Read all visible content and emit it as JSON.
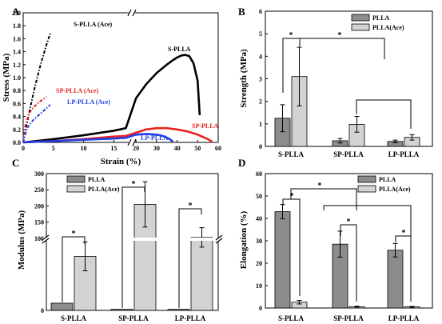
{
  "panel_letters": {
    "a": "A",
    "b": "B",
    "c": "C",
    "d": "D"
  },
  "legend": {
    "plla": "PLLA",
    "plla_ace": "PLLA(Ace)"
  },
  "chart_data": [
    {
      "panel": "A",
      "type": "line",
      "xlabel": "Strain (%)",
      "ylabel": "Stress (MPa)",
      "x_ticks_left": [
        "0",
        "5",
        "10",
        "15"
      ],
      "x_ticks_right": [
        "20",
        "30",
        "40",
        "50",
        "60"
      ],
      "y_ticks": [
        "0.0",
        "0.2",
        "0.4",
        "0.6",
        "0.8",
        "1.0",
        "1.2",
        "1.4",
        "1.6",
        "1.8",
        "2.0"
      ],
      "ylim": [
        0,
        2.0
      ],
      "axis_break": "x",
      "series_labels": [
        {
          "text": "S-PLLA (Ace)",
          "color": "#000000"
        },
        {
          "text": "SP-PLLA (Ace)",
          "color": "#e8231f"
        },
        {
          "text": "LP-PLLA (Ace)",
          "color": "#1f3ee8"
        },
        {
          "text": "S-PLLA",
          "color": "#000000"
        },
        {
          "text": "SP-PLLA",
          "color": "#e8231f"
        },
        {
          "text": "LP-PLLA",
          "color": "#1f3ee8"
        }
      ],
      "series": [
        {
          "name": "S-PLLA (Ace)",
          "color": "#000000",
          "style": "dashdot",
          "x": [
            0,
            0.3,
            0.6,
            0.9,
            1.2,
            1.4
          ],
          "y": [
            0,
            0.45,
            0.85,
            1.2,
            1.5,
            1.68
          ]
        },
        {
          "name": "SP-PLLA (Ace)",
          "color": "#e8231f",
          "style": "dashdot",
          "x": [
            0,
            0.1,
            0.3,
            0.6,
            0.9,
            1.2
          ],
          "y": [
            0,
            0.25,
            0.45,
            0.56,
            0.64,
            0.7
          ]
        },
        {
          "name": "LP-PLLA (Ace)",
          "color": "#1f3ee8",
          "style": "dashdot",
          "x": [
            0,
            0.2,
            0.5,
            0.8,
            1.1,
            1.4
          ],
          "y": [
            0,
            0.22,
            0.34,
            0.42,
            0.5,
            0.58
          ]
        },
        {
          "name": "S-PLLA",
          "color": "#000000",
          "style": "solid",
          "x": [
            0,
            5,
            10,
            15,
            17,
            20,
            25,
            30,
            35,
            38,
            40,
            42,
            44,
            46,
            48,
            50,
            51
          ],
          "y": [
            0,
            0.05,
            0.11,
            0.18,
            0.22,
            0.68,
            0.9,
            1.07,
            1.2,
            1.27,
            1.31,
            1.34,
            1.35,
            1.33,
            1.22,
            0.95,
            0.42
          ]
        },
        {
          "name": "SP-PLLA",
          "color": "#e8231f",
          "style": "solid",
          "x": [
            0,
            5,
            10,
            15,
            17,
            20,
            25,
            30,
            35,
            40,
            45,
            50,
            55,
            57
          ],
          "y": [
            0,
            0.02,
            0.05,
            0.09,
            0.1,
            0.15,
            0.2,
            0.22,
            0.22,
            0.2,
            0.17,
            0.12,
            0.05,
            0.01
          ]
        },
        {
          "name": "LP-PLLA",
          "color": "#1f3ee8",
          "style": "solid",
          "x": [
            0,
            5,
            10,
            15,
            17,
            20,
            25,
            30,
            33,
            36,
            38
          ],
          "y": [
            0,
            0.02,
            0.04,
            0.06,
            0.07,
            0.12,
            0.13,
            0.12,
            0.1,
            0.06,
            0.01
          ]
        }
      ]
    },
    {
      "panel": "B",
      "type": "bar",
      "ylabel": "Strength (MPa)",
      "ylim": [
        0,
        6
      ],
      "y_ticks": [
        "0",
        "1",
        "2",
        "3",
        "4",
        "5",
        "6"
      ],
      "categories": [
        "S-PLLA",
        "SP-PLLA",
        "LP-PLLA"
      ],
      "series": [
        {
          "name": "PLLA",
          "color": "#8c8c8c",
          "values": [
            1.25,
            0.25,
            0.22
          ],
          "errors": [
            0.6,
            0.1,
            0.06
          ]
        },
        {
          "name": "PLLA(Ace)",
          "color": "#d3d3d3",
          "values": [
            3.1,
            0.98,
            0.4
          ],
          "errors": [
            1.3,
            0.35,
            0.12
          ]
        }
      ],
      "significance": "*"
    },
    {
      "panel": "C",
      "type": "bar",
      "ylabel": "Modulus (MPa)",
      "axis_break": "y",
      "y_ticks_top": [
        "100",
        "150",
        "200",
        "250",
        "300"
      ],
      "y_ticks_bottom": [
        "0"
      ],
      "ylim_top": [
        90,
        300
      ],
      "categories": [
        "S-PLLA",
        "SP-PLLA",
        "LP-PLLA"
      ],
      "series": [
        {
          "name": "PLLA",
          "color": "#8c8c8c",
          "values": [
            2,
            0.3,
            0.3
          ]
        },
        {
          "name": "PLLA(Ace)",
          "color": "#d3d3d3",
          "values": [
            15,
            205,
            103
          ],
          "errors": [
            4,
            70,
            30
          ]
        }
      ],
      "significance": "*"
    },
    {
      "panel": "D",
      "type": "bar",
      "ylabel": "Elongation (%)",
      "ylim": [
        0,
        60
      ],
      "y_ticks": [
        "0",
        "10",
        "20",
        "30",
        "40",
        "50",
        "60"
      ],
      "categories": [
        "S-PLLA",
        "SP-PLLA",
        "LP-PLLA"
      ],
      "series": [
        {
          "name": "PLLA",
          "color": "#8c8c8c",
          "values": [
            43,
            28.5,
            25.8
          ],
          "errors": [
            3.2,
            5.8,
            3
          ]
        },
        {
          "name": "PLLA(Ace)",
          "color": "#d3d3d3",
          "values": [
            2.6,
            0.6,
            0.5
          ],
          "errors": [
            0.8,
            0.2,
            0.2
          ]
        }
      ],
      "significance": "*"
    }
  ]
}
